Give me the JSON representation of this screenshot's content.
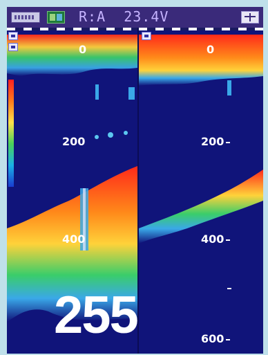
{
  "status_bar": {
    "text": "R:A  23.4V",
    "battery_icon": "battery-icon",
    "mode_icon": "sounder-mode-icon",
    "split_icon": "split-screen-icon"
  },
  "left_panel": {
    "scale_labels": [
      "0",
      "200",
      "400"
    ],
    "depth_readout": "255",
    "color_scale_icon": "color-scale-bar"
  },
  "right_panel": {
    "scale_labels": [
      "0",
      "200",
      "400",
      "600"
    ]
  },
  "colors": {
    "background": "#10147a",
    "strong_echo": "#ff2a1a",
    "mid_echo": "#ffd23a",
    "weak_echo": "#3aa8e8"
  }
}
